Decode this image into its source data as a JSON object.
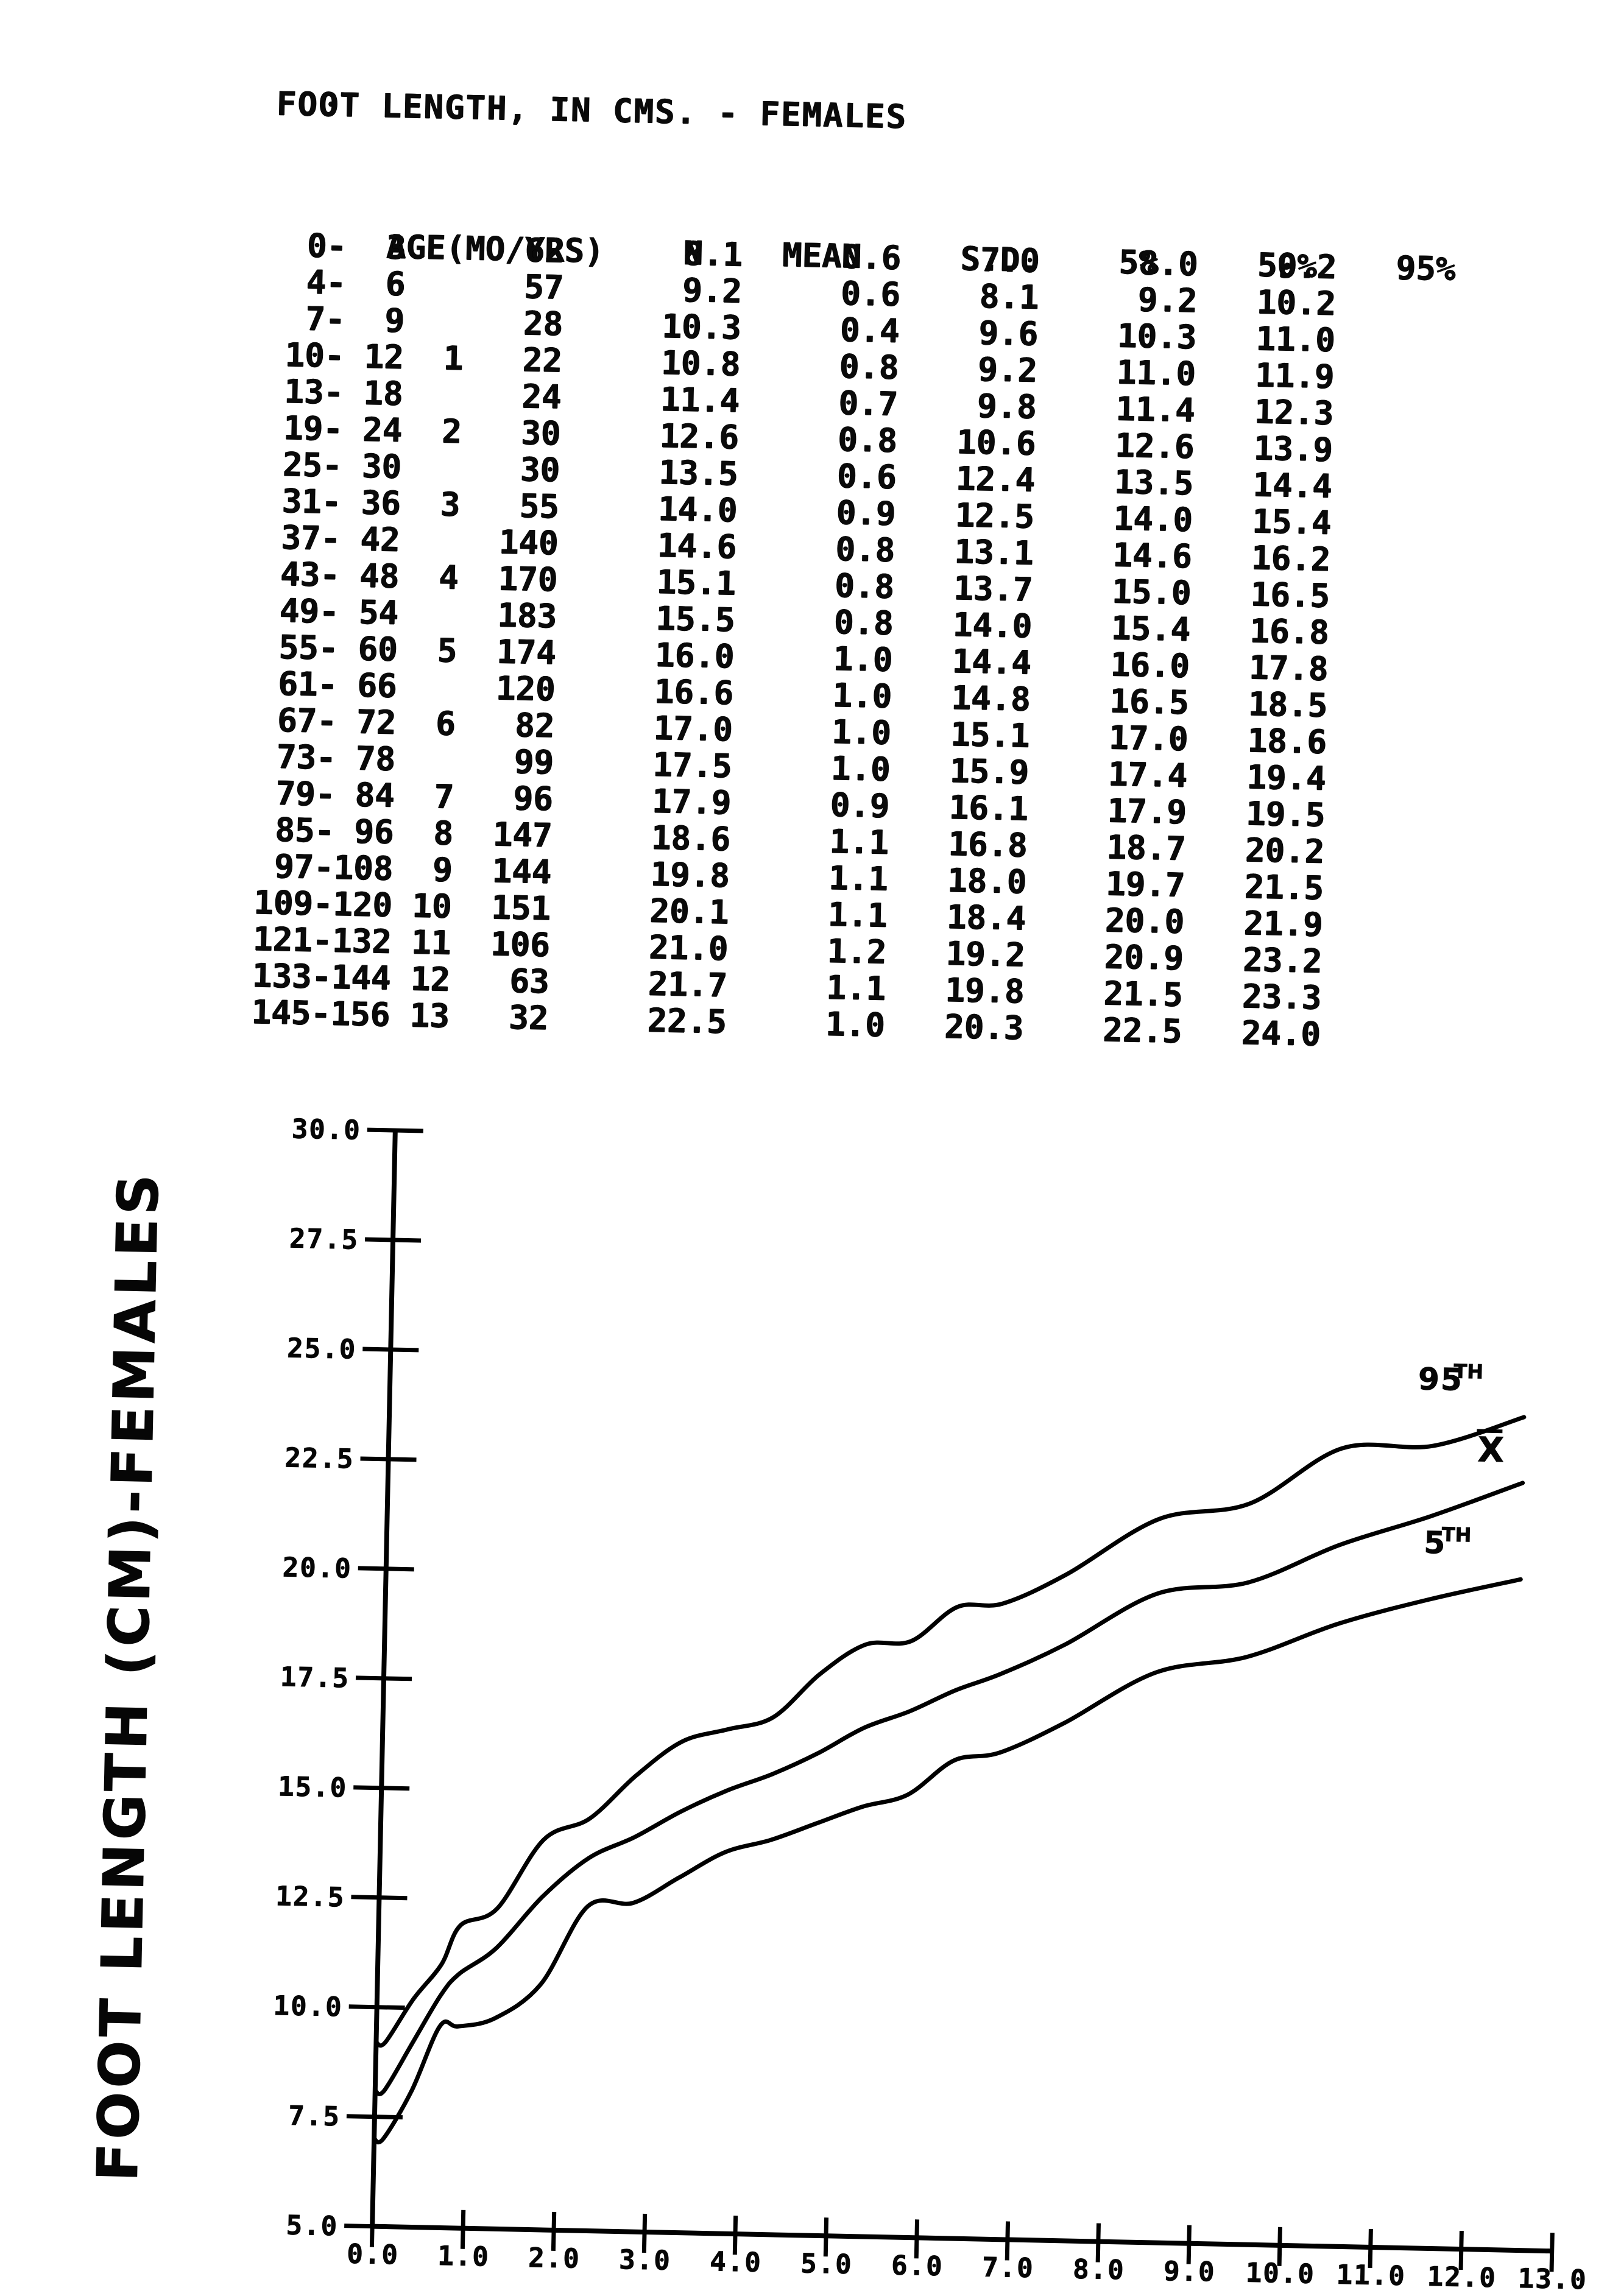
{
  "title": "FOOT LENGTH, IN CMS. - FEMALES",
  "table": {
    "headers": {
      "age": "AGE(MO/YRS)",
      "n": "N",
      "mean": "MEAN",
      "sd": "S.D.",
      "p5": "5%",
      "p50": "50%",
      "p95": "95%"
    },
    "rows": [
      {
        "age": "0-  3",
        "yr": "",
        "n": "62",
        "mean": "8.1",
        "sd": "0.6",
        "p5": "7.0",
        "p50": "8.0",
        "p95": "9.2"
      },
      {
        "age": "4-  6",
        "yr": "",
        "n": "57",
        "mean": "9.2",
        "sd": "0.6",
        "p5": "8.1",
        "p50": "9.2",
        "p95": "10.2"
      },
      {
        "age": "7-  9",
        "yr": "",
        "n": "28",
        "mean": "10.3",
        "sd": "0.4",
        "p5": "9.6",
        "p50": "10.3",
        "p95": "11.0"
      },
      {
        "age": "10- 12",
        "yr": "1",
        "n": "22",
        "mean": "10.8",
        "sd": "0.8",
        "p5": "9.2",
        "p50": "11.0",
        "p95": "11.9"
      },
      {
        "age": "13- 18",
        "yr": "",
        "n": "24",
        "mean": "11.4",
        "sd": "0.7",
        "p5": "9.8",
        "p50": "11.4",
        "p95": "12.3"
      },
      {
        "age": "19- 24",
        "yr": "2",
        "n": "30",
        "mean": "12.6",
        "sd": "0.8",
        "p5": "10.6",
        "p50": "12.6",
        "p95": "13.9"
      },
      {
        "age": "25- 30",
        "yr": "",
        "n": "30",
        "mean": "13.5",
        "sd": "0.6",
        "p5": "12.4",
        "p50": "13.5",
        "p95": "14.4"
      },
      {
        "age": "31- 36",
        "yr": "3",
        "n": "55",
        "mean": "14.0",
        "sd": "0.9",
        "p5": "12.5",
        "p50": "14.0",
        "p95": "15.4"
      },
      {
        "age": "37- 42",
        "yr": "",
        "n": "140",
        "mean": "14.6",
        "sd": "0.8",
        "p5": "13.1",
        "p50": "14.6",
        "p95": "16.2"
      },
      {
        "age": "43- 48",
        "yr": "4",
        "n": "170",
        "mean": "15.1",
        "sd": "0.8",
        "p5": "13.7",
        "p50": "15.0",
        "p95": "16.5"
      },
      {
        "age": "49- 54",
        "yr": "",
        "n": "183",
        "mean": "15.5",
        "sd": "0.8",
        "p5": "14.0",
        "p50": "15.4",
        "p95": "16.8"
      },
      {
        "age": "55- 60",
        "yr": "5",
        "n": "174",
        "mean": "16.0",
        "sd": "1.0",
        "p5": "14.4",
        "p50": "16.0",
        "p95": "17.8"
      },
      {
        "age": "61- 66",
        "yr": "",
        "n": "120",
        "mean": "16.6",
        "sd": "1.0",
        "p5": "14.8",
        "p50": "16.5",
        "p95": "18.5"
      },
      {
        "age": "67- 72",
        "yr": "6",
        "n": "82",
        "mean": "17.0",
        "sd": "1.0",
        "p5": "15.1",
        "p50": "17.0",
        "p95": "18.6"
      },
      {
        "age": "73- 78",
        "yr": "",
        "n": "99",
        "mean": "17.5",
        "sd": "1.0",
        "p5": "15.9",
        "p50": "17.4",
        "p95": "19.4"
      },
      {
        "age": "79- 84",
        "yr": "7",
        "n": "96",
        "mean": "17.9",
        "sd": "0.9",
        "p5": "16.1",
        "p50": "17.9",
        "p95": "19.5"
      },
      {
        "age": "85- 96",
        "yr": "8",
        "n": "147",
        "mean": "18.6",
        "sd": "1.1",
        "p5": "16.8",
        "p50": "18.7",
        "p95": "20.2"
      },
      {
        "age": "97-108",
        "yr": "9",
        "n": "144",
        "mean": "19.8",
        "sd": "1.1",
        "p5": "18.0",
        "p50": "19.7",
        "p95": "21.5"
      },
      {
        "age": "109-120",
        "yr": "10",
        "n": "151",
        "mean": "20.1",
        "sd": "1.1",
        "p5": "18.4",
        "p50": "20.0",
        "p95": "21.9"
      },
      {
        "age": "121-132",
        "yr": "11",
        "n": "106",
        "mean": "21.0",
        "sd": "1.2",
        "p5": "19.2",
        "p50": "20.9",
        "p95": "23.2"
      },
      {
        "age": "133-144",
        "yr": "12",
        "n": "63",
        "mean": "21.7",
        "sd": "1.1",
        "p5": "19.8",
        "p50": "21.5",
        "p95": "23.3"
      },
      {
        "age": "145-156",
        "yr": "13",
        "n": "32",
        "mean": "22.5",
        "sd": "1.0",
        "p5": "20.3",
        "p50": "22.5",
        "p95": "24.0"
      }
    ]
  },
  "chart_data": {
    "type": "line",
    "title": "",
    "xlabel": "",
    "ylabel": "FOOT LENGTH (CM)-FEMALES",
    "xlim": [
      0.0,
      13.0
    ],
    "ylim": [
      5.0,
      30.0
    ],
    "grid": false,
    "legend_position": "labels-at-curve-ends",
    "xticks": [
      "0.0",
      "1.0",
      "2.0",
      "3.0",
      "4.0",
      "5.0",
      "6.0",
      "7.0",
      "8.0",
      "9.0",
      "10.0",
      "11.0",
      "12.0",
      "13.0"
    ],
    "yticks": [
      "5.0",
      "7.5",
      "10.0",
      "12.5",
      "15.0",
      "17.5",
      "20.0",
      "22.5",
      "25.0",
      "27.5",
      "30.0"
    ],
    "x_years": [
      0.1,
      0.4,
      0.7,
      0.9,
      1.3,
      1.8,
      2.3,
      2.8,
      3.3,
      3.8,
      4.3,
      4.8,
      5.3,
      5.8,
      6.3,
      6.8,
      7.5,
      8.5,
      9.5,
      10.5,
      11.5,
      12.5
    ],
    "series": [
      {
        "name": "95TH",
        "values": [
          9.2,
          10.2,
          11.0,
          11.9,
          12.3,
          13.9,
          14.4,
          15.4,
          16.2,
          16.5,
          16.8,
          17.8,
          18.5,
          18.6,
          19.4,
          19.5,
          20.2,
          21.5,
          21.9,
          23.2,
          23.3,
          24.0
        ]
      },
      {
        "name": "X̄",
        "values": [
          8.1,
          9.2,
          10.3,
          10.8,
          11.4,
          12.6,
          13.5,
          14.0,
          14.6,
          15.1,
          15.5,
          16.0,
          16.6,
          17.0,
          17.5,
          17.9,
          18.6,
          19.8,
          20.1,
          21.0,
          21.7,
          22.5
        ]
      },
      {
        "name": "5TH",
        "values": [
          7.0,
          8.1,
          9.6,
          9.2,
          9.8,
          10.6,
          12.4,
          12.5,
          13.1,
          13.7,
          14.0,
          14.4,
          14.8,
          15.1,
          15.9,
          16.1,
          16.8,
          18.0,
          18.4,
          19.2,
          19.8,
          20.3
        ]
      }
    ]
  }
}
